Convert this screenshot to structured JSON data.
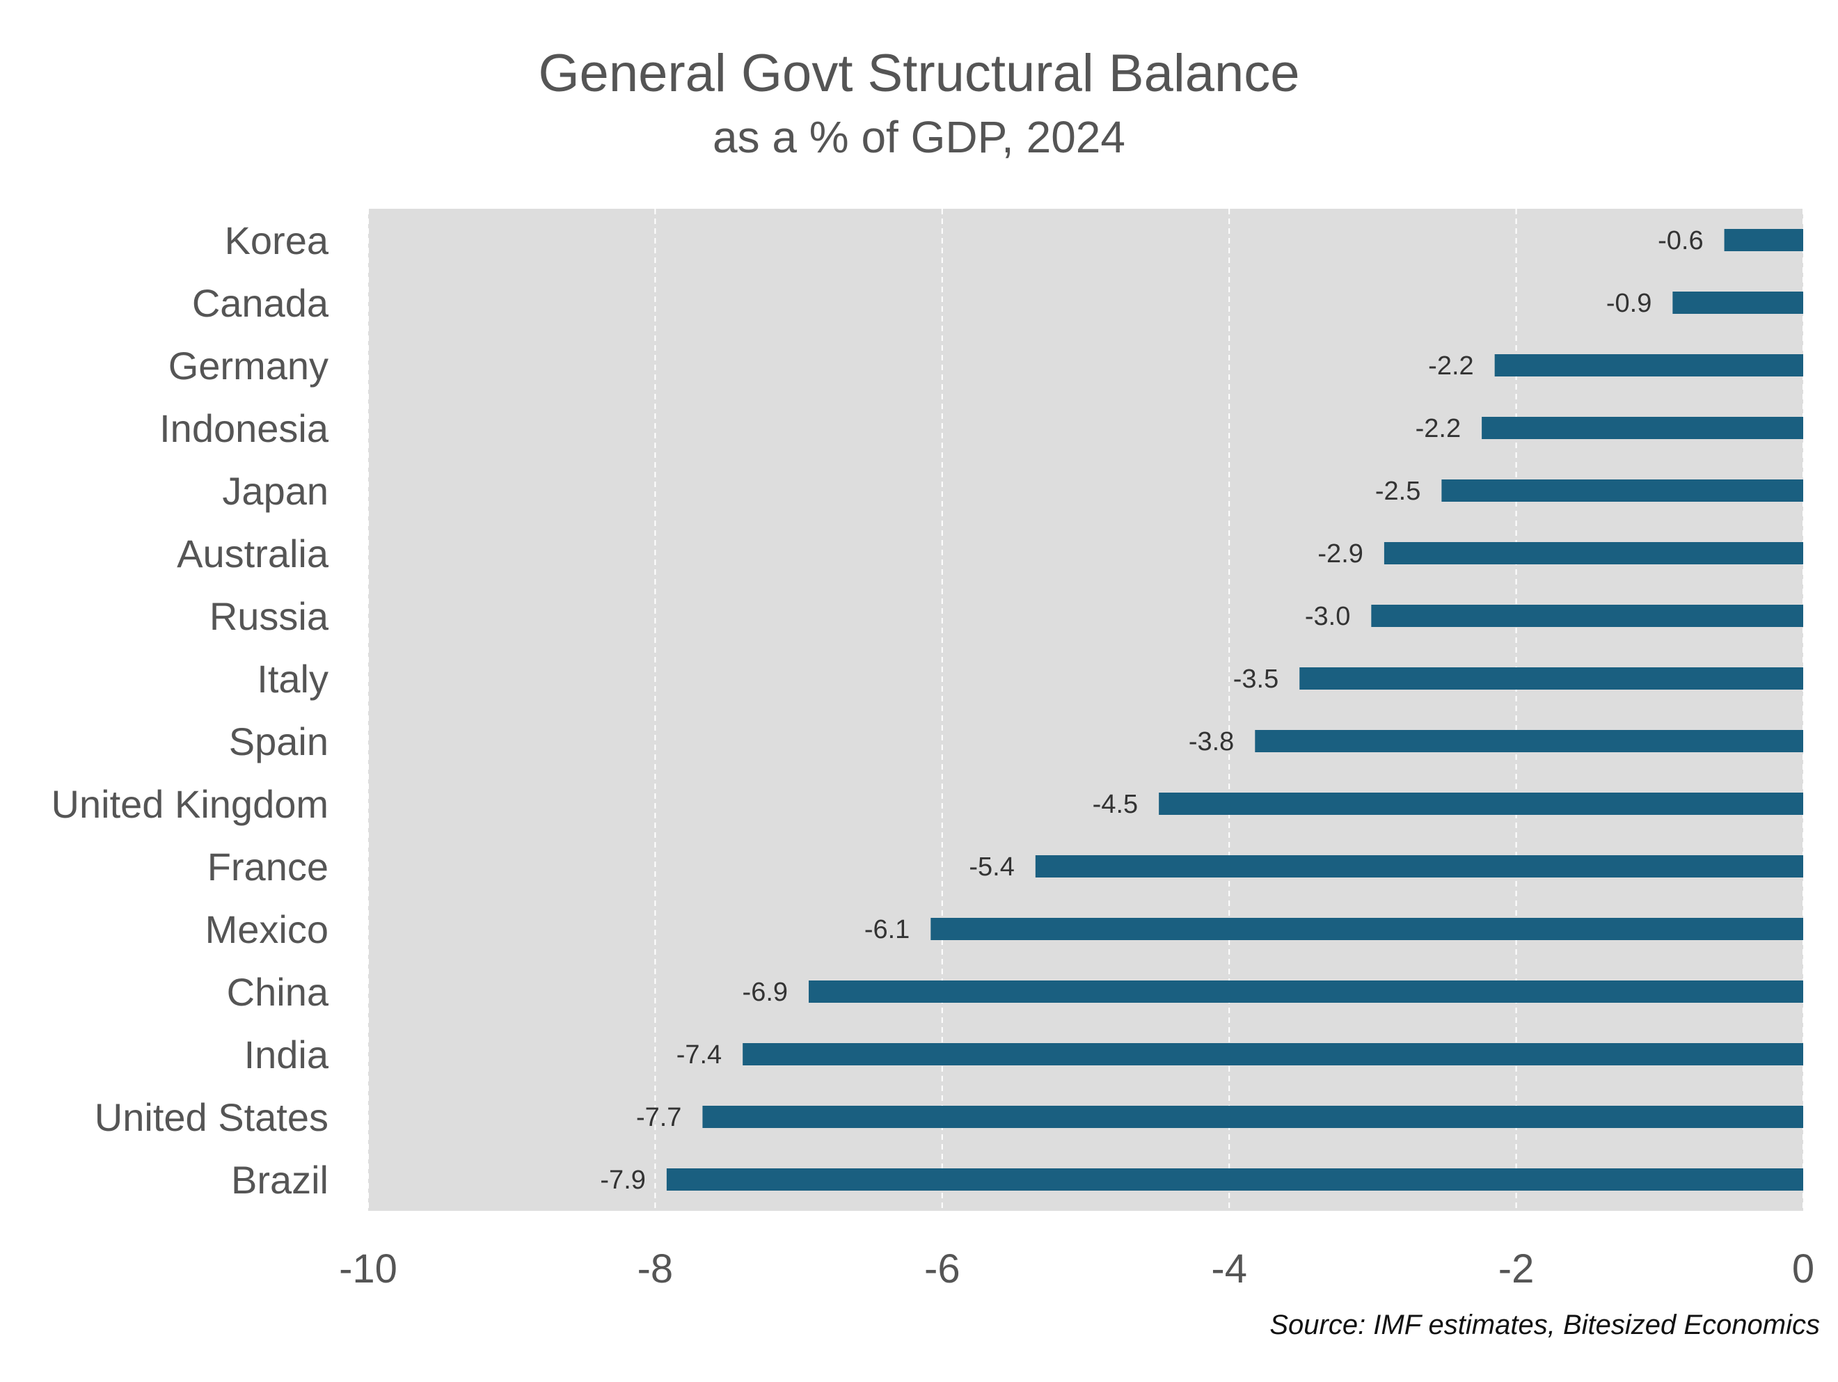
{
  "chart_data": {
    "type": "bar",
    "orientation": "horizontal",
    "title": "General Govt Structural Balance",
    "subtitle": "as a % of GDP,  2024",
    "categories": [
      "Korea",
      "Canada",
      "Germany",
      "Indonesia",
      "Japan",
      "Australia",
      "Russia",
      "Italy",
      "Spain",
      "United Kingdom",
      "France",
      "Mexico",
      "China",
      "India",
      "United States",
      "Brazil"
    ],
    "values": [
      -0.55,
      -0.91,
      -2.15,
      -2.24,
      -2.52,
      -2.92,
      -3.01,
      -3.51,
      -3.82,
      -4.49,
      -5.35,
      -6.08,
      -6.93,
      -7.39,
      -7.67,
      -7.92
    ],
    "value_labels": [
      "-0.6",
      "-0.9",
      "-2.2",
      "-2.2",
      "-2.5",
      "-2.9",
      "-3.0",
      "-3.5",
      "-3.8",
      "-4.5",
      "-5.4",
      "-6.1",
      "-6.9",
      "-7.4",
      "-7.7",
      "-7.9"
    ],
    "xlim": [
      -10,
      0
    ],
    "xticks": [
      -10,
      -8,
      -6,
      -4,
      -2,
      0
    ],
    "xtick_labels": [
      "-10",
      "-8",
      "-6",
      "-4",
      "-2",
      "0"
    ],
    "xlabel": "",
    "ylabel": "",
    "grid": "vertical dashed",
    "colors": {
      "bar": "#1a5f80",
      "plot_background": "#dddddd",
      "grid": "#ffffff",
      "text": "#555555"
    }
  },
  "source": "Source: IMF estimates, Bitesized Economics"
}
